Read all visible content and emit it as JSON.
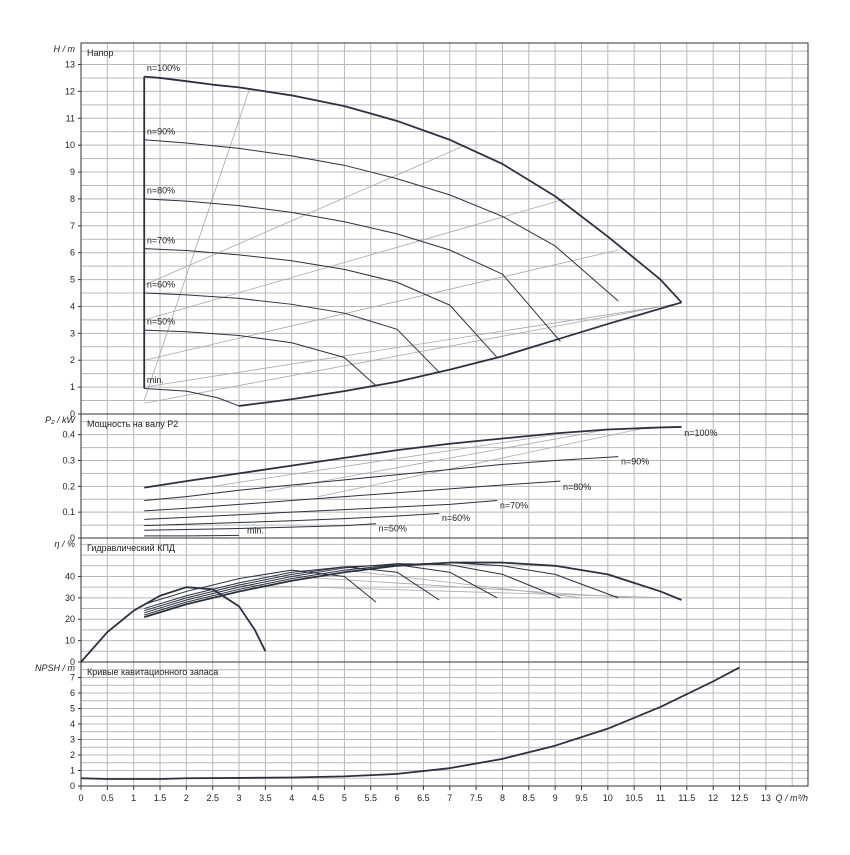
{
  "chart_data": [
    {
      "id": "head",
      "type": "line",
      "title": "Напор",
      "ylabel": "H / m",
      "ylim": [
        0,
        13.8
      ],
      "yticks": [
        0,
        1,
        2,
        3,
        4,
        5,
        6,
        7,
        8,
        9,
        10,
        11,
        12,
        13
      ],
      "series": [
        {
          "name": "n=100%",
          "x": [
            1.2,
            1.5,
            2,
            2.5,
            3,
            3.5,
            4,
            5,
            6,
            7,
            8,
            9,
            10,
            11,
            11.4
          ],
          "y": [
            12.55,
            12.5,
            12.38,
            12.25,
            12.15,
            12.0,
            11.85,
            11.45,
            10.9,
            10.2,
            9.3,
            8.1,
            6.6,
            5.0,
            4.15
          ],
          "bold": true
        },
        {
          "name": "n=90%",
          "x": [
            1.2,
            2,
            3,
            4,
            5,
            6,
            7,
            8,
            9,
            10.2
          ],
          "y": [
            10.2,
            10.08,
            9.88,
            9.6,
            9.25,
            8.75,
            8.15,
            7.35,
            6.25,
            4.2
          ]
        },
        {
          "name": "n=80%",
          "x": [
            1.2,
            2,
            3,
            4,
            5,
            6,
            7,
            8,
            9.1
          ],
          "y": [
            8.0,
            7.92,
            7.75,
            7.5,
            7.15,
            6.7,
            6.1,
            5.2,
            2.7
          ]
        },
        {
          "name": "n=70%",
          "x": [
            1.2,
            2,
            3,
            4,
            5,
            6,
            7,
            7.9
          ],
          "y": [
            6.15,
            6.08,
            5.92,
            5.7,
            5.38,
            4.9,
            4.05,
            2.1
          ]
        },
        {
          "name": "n=60%",
          "x": [
            1.2,
            2,
            3,
            4,
            5,
            6,
            6.8
          ],
          "y": [
            4.5,
            4.43,
            4.3,
            4.08,
            3.75,
            3.15,
            1.55
          ]
        },
        {
          "name": "n=50%",
          "x": [
            1.2,
            2,
            3,
            4,
            5,
            5.6
          ],
          "y": [
            3.12,
            3.06,
            2.92,
            2.65,
            2.1,
            1.05
          ]
        },
        {
          "name": "min.",
          "x": [
            1.2,
            2,
            2.6,
            3.0
          ],
          "y": [
            0.95,
            0.85,
            0.6,
            0.3
          ]
        },
        {
          "name": "",
          "x": [
            3.0,
            4,
            5,
            6,
            7,
            8,
            9,
            10,
            11.4
          ],
          "y": [
            0.3,
            0.55,
            0.85,
            1.2,
            1.65,
            2.15,
            2.75,
            3.35,
            4.15
          ],
          "bold": true
        },
        {
          "name": "",
          "x": [
            1.2,
            1.2
          ],
          "y": [
            0.95,
            12.55
          ],
          "bold": true
        }
      ],
      "label_points": [
        {
          "text": "n=100%",
          "x": 1.25,
          "y": 12.75
        },
        {
          "text": "n=90%",
          "x": 1.25,
          "y": 10.4
        },
        {
          "text": "n=80%",
          "x": 1.25,
          "y": 8.2
        },
        {
          "text": "n=70%",
          "x": 1.25,
          "y": 6.35
        },
        {
          "text": "n=60%",
          "x": 1.25,
          "y": 4.7
        },
        {
          "text": "n=50%",
          "x": 1.25,
          "y": 3.32
        },
        {
          "text": "min.",
          "x": 1.25,
          "y": 1.15
        }
      ],
      "iso_lines": [
        {
          "x": [
            1.2,
            3.2
          ],
          "y": [
            0.5,
            12.1
          ]
        },
        {
          "x": [
            1.2,
            7.3
          ],
          "y": [
            4.8,
            10.0
          ]
        },
        {
          "x": [
            1.2,
            9.2
          ],
          "y": [
            3.5,
            8.0
          ]
        },
        {
          "x": [
            1.2,
            10.2
          ],
          "y": [
            2.0,
            6.1
          ]
        },
        {
          "x": [
            1.2,
            11.0
          ],
          "y": [
            1.0,
            4.0
          ]
        },
        {
          "x": [
            1.2,
            11.3
          ],
          "y": [
            0.4,
            4.1
          ]
        }
      ]
    },
    {
      "id": "power",
      "type": "line",
      "title": "Мощность на валу P2",
      "ylabel": "P₂ / kW",
      "ylim": [
        0,
        0.48
      ],
      "yticks": [
        0,
        0.1,
        0.2,
        0.3,
        0.4
      ],
      "yticklabels": [
        "0",
        "0.1",
        "0.2",
        "0.3",
        "0.4"
      ],
      "series": [
        {
          "name": "n=100%",
          "x": [
            1.2,
            2,
            3,
            4,
            5,
            6,
            7,
            8,
            9,
            10,
            11,
            11.4
          ],
          "y": [
            0.195,
            0.22,
            0.25,
            0.28,
            0.31,
            0.34,
            0.365,
            0.385,
            0.405,
            0.42,
            0.428,
            0.43
          ],
          "bold": true
        },
        {
          "name": "n=90%",
          "x": [
            1.2,
            2,
            3,
            4,
            5,
            6,
            7,
            8,
            9,
            10.2
          ],
          "y": [
            0.145,
            0.16,
            0.185,
            0.205,
            0.225,
            0.245,
            0.265,
            0.285,
            0.3,
            0.315
          ]
        },
        {
          "name": "n=80%",
          "x": [
            1.2,
            2,
            3,
            4,
            5,
            6,
            7,
            8,
            9.1
          ],
          "y": [
            0.105,
            0.115,
            0.13,
            0.145,
            0.16,
            0.175,
            0.19,
            0.205,
            0.22
          ]
        },
        {
          "name": "n=70%",
          "x": [
            1.2,
            2,
            3,
            4,
            5,
            6,
            7,
            7.9
          ],
          "y": [
            0.072,
            0.08,
            0.09,
            0.1,
            0.11,
            0.12,
            0.13,
            0.145
          ]
        },
        {
          "name": "n=60%",
          "x": [
            1.2,
            2,
            3,
            4,
            5,
            6,
            6.8
          ],
          "y": [
            0.048,
            0.053,
            0.06,
            0.067,
            0.075,
            0.085,
            0.095
          ]
        },
        {
          "name": "n=50%",
          "x": [
            1.2,
            2,
            3,
            4,
            5,
            5.6
          ],
          "y": [
            0.03,
            0.033,
            0.037,
            0.042,
            0.048,
            0.055
          ]
        },
        {
          "name": "min.",
          "x": [
            1.2,
            2,
            2.6,
            3.0
          ],
          "y": [
            0.008,
            0.008,
            0.009,
            0.01
          ]
        }
      ],
      "label_points": [
        {
          "text": "n=100%",
          "x": 11.45,
          "y": 0.395
        },
        {
          "text": "n=90%",
          "x": 10.25,
          "y": 0.285
        },
        {
          "text": "n=80%",
          "x": 9.15,
          "y": 0.185
        },
        {
          "text": "n=70%",
          "x": 7.95,
          "y": 0.115
        },
        {
          "text": "n=60%",
          "x": 6.85,
          "y": 0.065
        },
        {
          "text": "n=50%",
          "x": 5.65,
          "y": 0.025
        },
        {
          "text": "min.",
          "x": 3.15,
          "y": 0.018
        }
      ],
      "iso_lines": [
        {
          "x": [
            2.5,
            9.0
          ],
          "y": [
            0.2,
            0.4
          ]
        },
        {
          "x": [
            3.5,
            10.0
          ],
          "y": [
            0.18,
            0.42
          ]
        },
        {
          "x": [
            4.5,
            10.8
          ],
          "y": [
            0.16,
            0.43
          ]
        }
      ]
    },
    {
      "id": "efficiency",
      "type": "line",
      "title": "Гидравлический КПД",
      "ylabel": "η / %",
      "ylim": [
        0,
        58
      ],
      "yticks": [
        0,
        10,
        20,
        30,
        40
      ],
      "series": [
        {
          "name": "n=100%",
          "x": [
            1.2,
            2,
            3,
            4,
            5,
            6,
            7,
            8,
            9,
            10,
            11,
            11.4
          ],
          "y": [
            21,
            27,
            33,
            38,
            42,
            45,
            46.5,
            46.5,
            45,
            41,
            33,
            29
          ],
          "bold": true
        },
        {
          "name": "n=90%",
          "x": [
            1.2,
            2,
            3,
            4,
            5,
            6,
            7,
            8,
            9,
            10.2
          ],
          "y": [
            22,
            28,
            34,
            39,
            43,
            45.5,
            46.5,
            45,
            41,
            30
          ]
        },
        {
          "name": "n=80%",
          "x": [
            1.2,
            2,
            3,
            4,
            5,
            6,
            7,
            8,
            9.1
          ],
          "y": [
            23,
            29,
            35,
            40,
            44,
            46,
            45.5,
            41,
            30
          ]
        },
        {
          "name": "n=70%",
          "x": [
            1.2,
            2,
            3,
            4,
            5,
            6,
            7,
            7.9
          ],
          "y": [
            24,
            30,
            36,
            41,
            44.5,
            45.5,
            42,
            30
          ]
        },
        {
          "name": "n=60%",
          "x": [
            1.2,
            2,
            3,
            4,
            5,
            6,
            6.8
          ],
          "y": [
            25,
            31,
            37,
            42,
            44.5,
            42,
            29
          ]
        },
        {
          "name": "n=50%",
          "x": [
            1.2,
            2,
            3,
            4,
            5,
            5.6
          ],
          "y": [
            27,
            33,
            39,
            43,
            40,
            28
          ]
        },
        {
          "name": "min.",
          "x": [
            0,
            0.5,
            1,
            1.5,
            2,
            2.5,
            3,
            3.3,
            3.5
          ],
          "y": [
            0,
            14,
            24,
            31,
            35,
            34,
            26,
            15,
            5
          ],
          "bold": true
        }
      ],
      "iso_lines": [
        {
          "x": [
            3.0,
            11.2
          ],
          "y": [
            36,
            30
          ]
        },
        {
          "x": [
            4.0,
            10.5
          ],
          "y": [
            40,
            30
          ]
        },
        {
          "x": [
            5.0,
            9.5
          ],
          "y": [
            43,
            30
          ]
        }
      ]
    },
    {
      "id": "npsh",
      "type": "line",
      "title": "Кривые кавитационного запаса",
      "ylabel": "NPSH / m",
      "ylim": [
        0,
        8
      ],
      "yticks": [
        0,
        1,
        2,
        3,
        4,
        5,
        6,
        7
      ],
      "series": [
        {
          "name": "",
          "x": [
            0,
            0.5,
            1,
            1.5,
            2,
            3,
            4,
            5,
            6,
            7,
            8,
            9,
            10,
            11,
            12,
            12.5
          ],
          "y": [
            0.5,
            0.45,
            0.45,
            0.45,
            0.5,
            0.52,
            0.55,
            0.62,
            0.78,
            1.15,
            1.75,
            2.6,
            3.7,
            5.1,
            6.75,
            7.65
          ],
          "bold": true
        }
      ]
    }
  ],
  "xaxis": {
    "label": "Q / m³/h",
    "ticks": [
      0,
      0.5,
      1,
      1.5,
      2,
      2.5,
      3,
      3.5,
      4,
      4.5,
      5,
      5.5,
      6,
      6.5,
      7,
      7.5,
      8,
      8.5,
      9,
      9.5,
      10,
      10.5,
      11,
      11.5,
      12,
      12.5,
      13
    ],
    "ticklabels": [
      "0",
      "0.5",
      "1",
      "1.5",
      "2",
      "2.5",
      "3",
      "3.5",
      "4",
      "4.5",
      "5",
      "5.5",
      "6",
      "6.5",
      "7",
      "7.5",
      "8",
      "8.5",
      "9",
      "9.5",
      "10",
      "10.5",
      "11",
      "11.5",
      "12",
      "12.5",
      "13"
    ],
    "xlim": [
      0,
      13.8
    ]
  },
  "colors": {
    "curve": "#2c3140",
    "iso": "#a8a8a8",
    "grid": "#b8b8b8",
    "frame": "#333333"
  }
}
